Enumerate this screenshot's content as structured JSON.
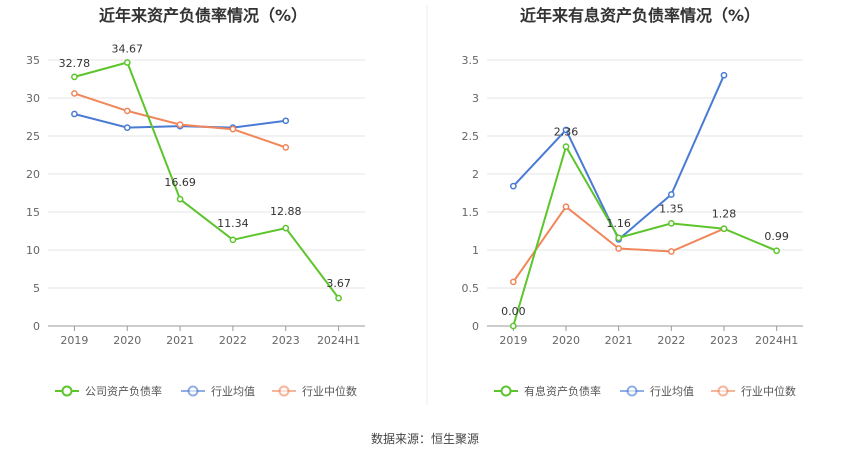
{
  "source_text": "数据来源：恒生聚源",
  "chart_data": [
    {
      "type": "line",
      "title": "近年来资产负债率情况（%）",
      "categories": [
        "2019",
        "2020",
        "2021",
        "2022",
        "2023",
        "2024H1"
      ],
      "ylim": [
        0,
        35
      ],
      "yticks": [
        "0",
        "5",
        "10",
        "15",
        "20",
        "25",
        "30",
        "35"
      ],
      "grid": true,
      "legend_position": "bottom",
      "series": [
        {
          "name": "公司资产负债率",
          "color": "#5cc52c",
          "values": [
            32.78,
            34.67,
            16.69,
            11.34,
            12.88,
            3.67
          ],
          "labels": [
            "32.78",
            "34.67",
            "16.69",
            "11.34",
            "12.88",
            "3.67"
          ]
        },
        {
          "name": "行业均值",
          "color": "#4a7bd4",
          "values": [
            27.9,
            26.1,
            26.3,
            26.1,
            27.0,
            null
          ]
        },
        {
          "name": "行业中位数",
          "color": "#f0865a",
          "values": [
            30.6,
            28.3,
            26.5,
            25.9,
            23.5,
            null
          ]
        }
      ]
    },
    {
      "type": "line",
      "title": "近年来有息资产负债率情况（%）",
      "categories": [
        "2019",
        "2020",
        "2021",
        "2022",
        "2023",
        "2024H1"
      ],
      "ylim": [
        0,
        3.5
      ],
      "yticks": [
        "0",
        "0.5",
        "1",
        "1.5",
        "2",
        "2.5",
        "3",
        "3.5"
      ],
      "grid": true,
      "legend_position": "bottom",
      "series": [
        {
          "name": "有息资产负债率",
          "color": "#5cc52c",
          "values": [
            0.0,
            2.36,
            1.16,
            1.35,
            1.28,
            0.99
          ],
          "labels": [
            "0.00",
            "2.36",
            "1.16",
            "1.35",
            "1.28",
            "0.99"
          ]
        },
        {
          "name": "行业均值",
          "color": "#4a7bd4",
          "values": [
            1.84,
            2.58,
            1.14,
            1.73,
            3.3,
            null
          ]
        },
        {
          "name": "行业中位数",
          "color": "#f0865a",
          "values": [
            0.58,
            1.57,
            1.02,
            0.98,
            1.28,
            null
          ]
        }
      ]
    }
  ]
}
